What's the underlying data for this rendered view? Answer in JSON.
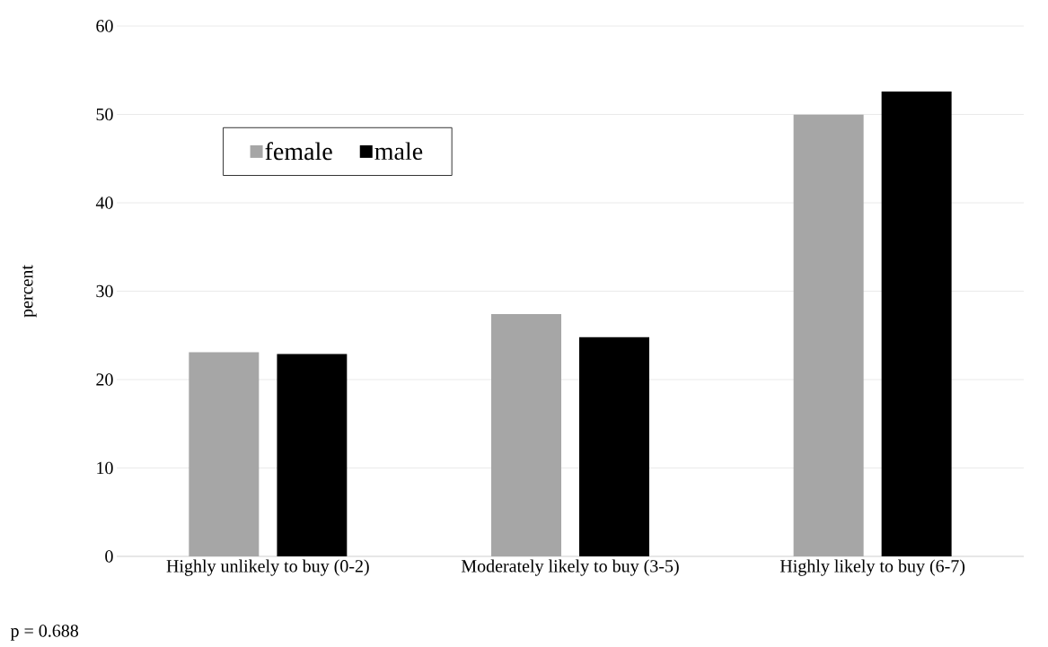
{
  "chart_data": {
    "type": "bar",
    "ylabel": "percent",
    "categories": [
      "Highly unlikely to buy (0-2)",
      "Moderately likely to buy (3-5)",
      "Highly likely to buy (6-7)"
    ],
    "series": [
      {
        "name": "female",
        "color": "#a6a6a6",
        "values": [
          23.1,
          27.4,
          50.0
        ]
      },
      {
        "name": "male",
        "color": "#000000",
        "values": [
          22.9,
          24.8,
          52.6
        ]
      }
    ],
    "ylim": [
      0,
      60
    ],
    "yticks": [
      0,
      10,
      20,
      30,
      40,
      50,
      60
    ],
    "grid": "y",
    "legend": "top left",
    "annotations": [
      "p = 0.688"
    ]
  }
}
